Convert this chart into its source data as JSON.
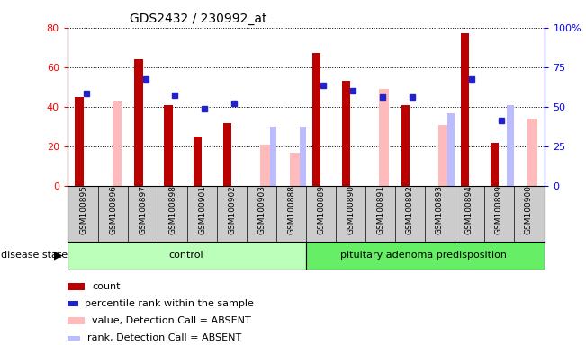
{
  "title": "GDS2432 / 230992_at",
  "samples": [
    "GSM100895",
    "GSM100896",
    "GSM100897",
    "GSM100898",
    "GSM100901",
    "GSM100902",
    "GSM100903",
    "GSM100888",
    "GSM100889",
    "GSM100890",
    "GSM100891",
    "GSM100892",
    "GSM100893",
    "GSM100894",
    "GSM100899",
    "GSM100900"
  ],
  "count": [
    45,
    0,
    64,
    41,
    25,
    32,
    0,
    0,
    67,
    53,
    0,
    41,
    0,
    77,
    22,
    0
  ],
  "percentile": [
    47,
    0,
    54,
    46,
    39,
    42,
    0,
    0,
    51,
    48,
    45,
    45,
    0,
    54,
    33,
    0
  ],
  "value_absent": [
    0,
    43,
    0,
    0,
    0,
    0,
    21,
    17,
    0,
    0,
    49,
    0,
    31,
    0,
    0,
    34
  ],
  "rank_absent": [
    0,
    0,
    0,
    0,
    0,
    0,
    30,
    30,
    0,
    0,
    0,
    0,
    37,
    0,
    41,
    0
  ],
  "n_control": 8,
  "n_disease": 8,
  "ylim_left": [
    0,
    80
  ],
  "ylim_right": [
    0,
    100
  ],
  "yticks_left": [
    0,
    20,
    40,
    60,
    80
  ],
  "yticks_right": [
    0,
    25,
    50,
    75,
    100
  ],
  "color_count": "#bb0000",
  "color_percentile": "#2222cc",
  "color_value_absent": "#ffbbbb",
  "color_rank_absent": "#bbbbff",
  "control_bg_light": "#d4f5d4",
  "control_bg_dark": "#66dd66",
  "disease_bg_light": "#aaf0aa",
  "disease_bg_dark": "#44cc44",
  "gray_bg": "#cccccc",
  "legend_items": [
    "count",
    "percentile rank within the sample",
    "value, Detection Call = ABSENT",
    "rank, Detection Call = ABSENT"
  ],
  "legend_colors": [
    "#bb0000",
    "#2222cc",
    "#ffbbbb",
    "#bbbbff"
  ]
}
